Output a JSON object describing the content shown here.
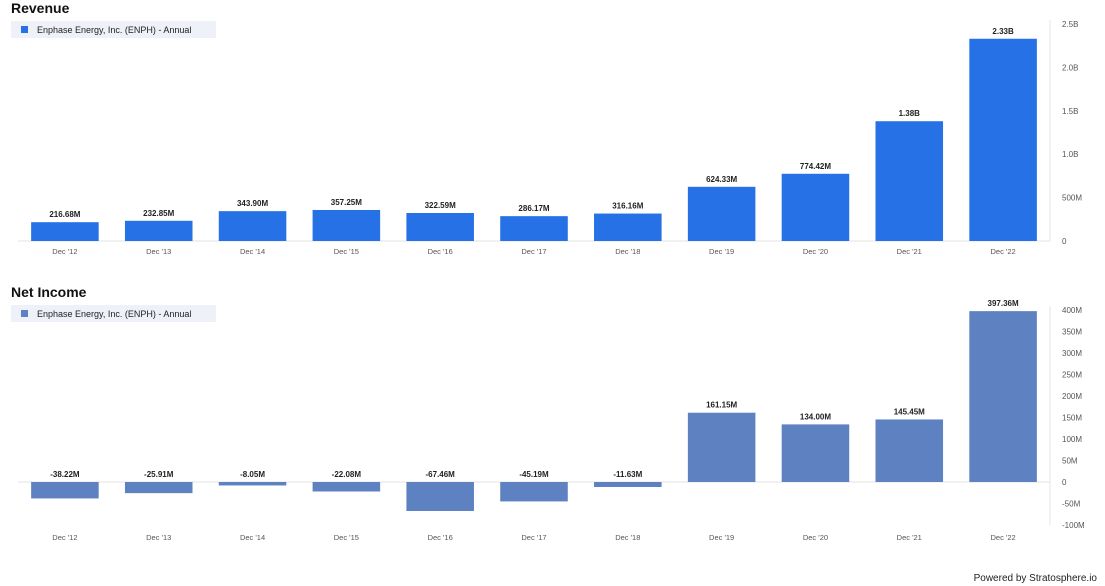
{
  "footer": {
    "powered_by": "Powered by Stratosphere.io"
  },
  "chart_data": [
    {
      "type": "bar",
      "title": "Revenue",
      "legend": {
        "entries": [
          "Enphase Energy, Inc. (ENPH) - Annual"
        ],
        "placement": "top-left"
      },
      "color": "#2671e6",
      "categories": [
        "Dec '12",
        "Dec '13",
        "Dec '14",
        "Dec '15",
        "Dec '16",
        "Dec '17",
        "Dec '18",
        "Dec '19",
        "Dec '20",
        "Dec '21",
        "Dec '22"
      ],
      "series": [
        {
          "name": "Enphase Energy, Inc. (ENPH) - Annual",
          "values": [
            216680000,
            232850000,
            343900000,
            357250000,
            322590000,
            286170000,
            316160000,
            624330000,
            774420000,
            1380000000,
            2330000000
          ]
        }
      ],
      "data_labels": [
        "216.68M",
        "232.85M",
        "343.90M",
        "357.25M",
        "322.59M",
        "286.17M",
        "316.16M",
        "624.33M",
        "774.42M",
        "1.38B",
        "2.33B"
      ],
      "ylim": [
        0,
        2500000000
      ],
      "yticks": [
        0,
        500000000,
        1000000000,
        1500000000,
        2000000000,
        2500000000
      ],
      "ytick_labels": [
        "0",
        "500M",
        "1.0B",
        "1.5B",
        "2.0B",
        "2.5B"
      ],
      "y_axis_side": "right",
      "grid": false,
      "xlabel": "",
      "ylabel": ""
    },
    {
      "type": "bar",
      "title": "Net Income",
      "legend": {
        "entries": [
          "Enphase Energy, Inc. (ENPH) - Annual"
        ],
        "placement": "top-left"
      },
      "color": "#5e82c1",
      "categories": [
        "Dec '12",
        "Dec '13",
        "Dec '14",
        "Dec '15",
        "Dec '16",
        "Dec '17",
        "Dec '18",
        "Dec '19",
        "Dec '20",
        "Dec '21",
        "Dec '22"
      ],
      "series": [
        {
          "name": "Enphase Energy, Inc. (ENPH) - Annual",
          "values": [
            -38220000,
            -25910000,
            -8050000,
            -22080000,
            -67460000,
            -45190000,
            -11630000,
            161150000,
            134000000,
            145450000,
            397360000
          ]
        }
      ],
      "data_labels": [
        "-38.22M",
        "-25.91M",
        "-8.05M",
        "-22.08M",
        "-67.46M",
        "-45.19M",
        "-11.63M",
        "161.15M",
        "134.00M",
        "145.45M",
        "397.36M"
      ],
      "ylim": [
        -100000000,
        400000000
      ],
      "yticks": [
        -100000000,
        -50000000,
        0,
        50000000,
        100000000,
        150000000,
        200000000,
        250000000,
        300000000,
        350000000,
        400000000
      ],
      "ytick_labels": [
        "-100M",
        "-50M",
        "0",
        "50M",
        "100M",
        "150M",
        "200M",
        "250M",
        "300M",
        "350M",
        "400M"
      ],
      "y_axis_side": "right",
      "grid": false,
      "xlabel": "",
      "ylabel": ""
    }
  ]
}
